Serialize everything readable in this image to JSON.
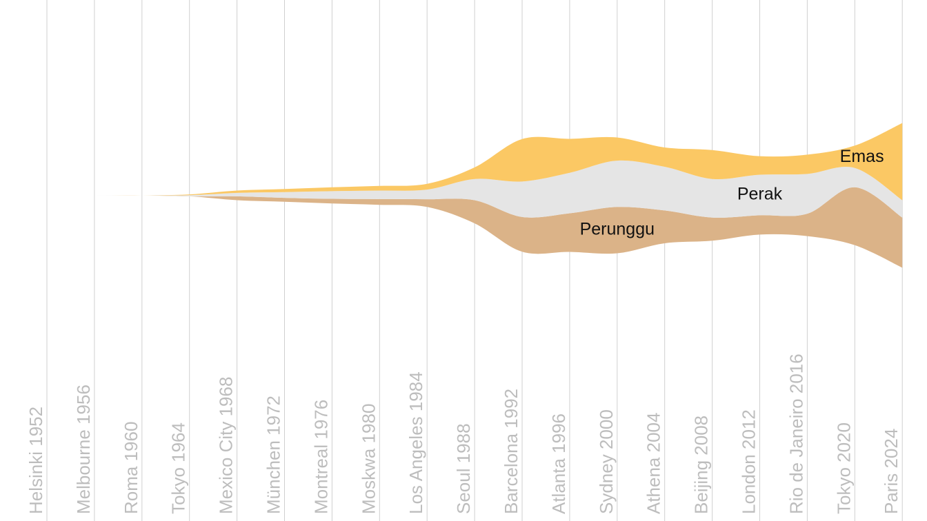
{
  "chart_data": {
    "type": "area",
    "stacked": true,
    "streamgraph": true,
    "categories": [
      "Helsinki 1952",
      "Melbourne 1956",
      "Roma 1960",
      "Tokyo 1964",
      "Mexico City 1968",
      "München 1972",
      "Montreal 1976",
      "Moskwa 1980",
      "Los Angeles 1984",
      "Seoul 1988",
      "Barcelona 1992",
      "Atlanta 1996",
      "Sydney 2000",
      "Athena 2004",
      "Beijing 2008",
      "London 2012",
      "Rio de Janeiro 2016",
      "Tokyo 2020",
      "Paris 2024"
    ],
    "series": [
      {
        "name": "Perunggu",
        "values": [
          0,
          0,
          0,
          0,
          1,
          1,
          1.2,
          1.5,
          2,
          6,
          9,
          10,
          12,
          8.5,
          6,
          5,
          5.8,
          15,
          13
        ],
        "color": "#dbb388"
      },
      {
        "name": "Perak",
        "values": [
          0,
          0,
          0,
          0.3,
          0.9,
          1.5,
          2,
          2.2,
          2.5,
          5.5,
          9.2,
          10.5,
          12,
          11.3,
          10,
          10.5,
          10.3,
          5,
          4.5
        ],
        "color": "#e5e5e5"
      },
      {
        "name": "Emas",
        "values": [
          0,
          0,
          0,
          0.2,
          0.6,
          0.8,
          1,
          1.2,
          1.5,
          3,
          11,
          8.8,
          6,
          5,
          7.5,
          4.8,
          5,
          5.8,
          20
        ],
        "color": "#fbc864"
      }
    ],
    "xlabel": "",
    "ylabel": "",
    "grid": true,
    "legend": "none"
  }
}
